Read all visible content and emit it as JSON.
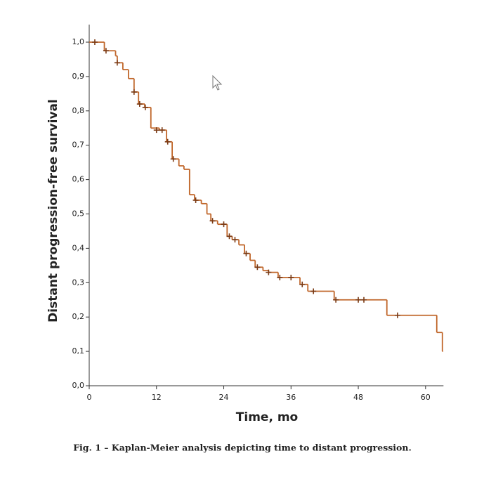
{
  "chart_data": {
    "type": "step",
    "xlabel": "Time, mo",
    "ylabel": "Distant progression-free survival",
    "caption": "Fig. 1 – Kaplan-Meier analysis depicting time to distant progression.",
    "color": "#c0662a",
    "censor_color": "#7a3a14",
    "xlim": [
      0,
      63.2
    ],
    "xticks": [
      0,
      12,
      24,
      36,
      48,
      60
    ],
    "ylim": [
      0,
      1.0
    ],
    "yticks": [
      {
        "value": 0,
        "label": "0,0"
      },
      {
        "value": 0.1,
        "label": "0,1"
      },
      {
        "value": 0.2,
        "label": "0,2"
      },
      {
        "value": 0.3,
        "label": "0,3"
      },
      {
        "value": 0.4,
        "label": "0,4"
      },
      {
        "value": 0.5,
        "label": "0,5"
      },
      {
        "value": 0.6,
        "label": "0,6"
      },
      {
        "value": 0.7,
        "label": "0,7"
      },
      {
        "value": 0.8,
        "label": "0,8"
      },
      {
        "value": 0.9,
        "label": "0,9"
      },
      {
        "value": 1.0,
        "label": "1,0"
      }
    ],
    "curve": {
      "x": [
        0,
        2.7,
        4.7,
        5,
        6,
        7,
        8,
        8.8,
        9.9,
        11,
        12.5,
        13.8,
        14.8,
        16,
        16.9,
        17.9,
        18.8,
        20,
        21,
        21.7,
        22.9,
        24.6,
        25.5,
        26.7,
        27.7,
        28.7,
        29.6,
        31,
        32,
        33.7,
        37.6,
        39,
        43.7,
        53.1,
        62,
        63
      ],
      "values": [
        1.0,
        0.975,
        0.96,
        0.94,
        0.92,
        0.894,
        0.855,
        0.82,
        0.81,
        0.75,
        0.744,
        0.71,
        0.66,
        0.64,
        0.63,
        0.556,
        0.54,
        0.53,
        0.5,
        0.48,
        0.47,
        0.435,
        0.425,
        0.41,
        0.385,
        0.365,
        0.345,
        0.335,
        0.33,
        0.315,
        0.295,
        0.275,
        0.25,
        0.205,
        0.155,
        0.1
      ]
    },
    "censored": {
      "x": [
        1,
        3,
        5,
        8,
        9,
        10,
        12,
        13,
        14,
        15,
        19,
        22,
        24,
        25,
        26,
        28,
        30,
        32,
        34,
        36,
        38,
        40,
        44,
        48,
        49,
        55
      ],
      "values": [
        1.0,
        0.975,
        0.94,
        0.855,
        0.82,
        0.81,
        0.744,
        0.744,
        0.71,
        0.66,
        0.54,
        0.48,
        0.47,
        0.435,
        0.425,
        0.385,
        0.345,
        0.33,
        0.315,
        0.315,
        0.295,
        0.275,
        0.25,
        0.25,
        0.25,
        0.205
      ]
    }
  }
}
